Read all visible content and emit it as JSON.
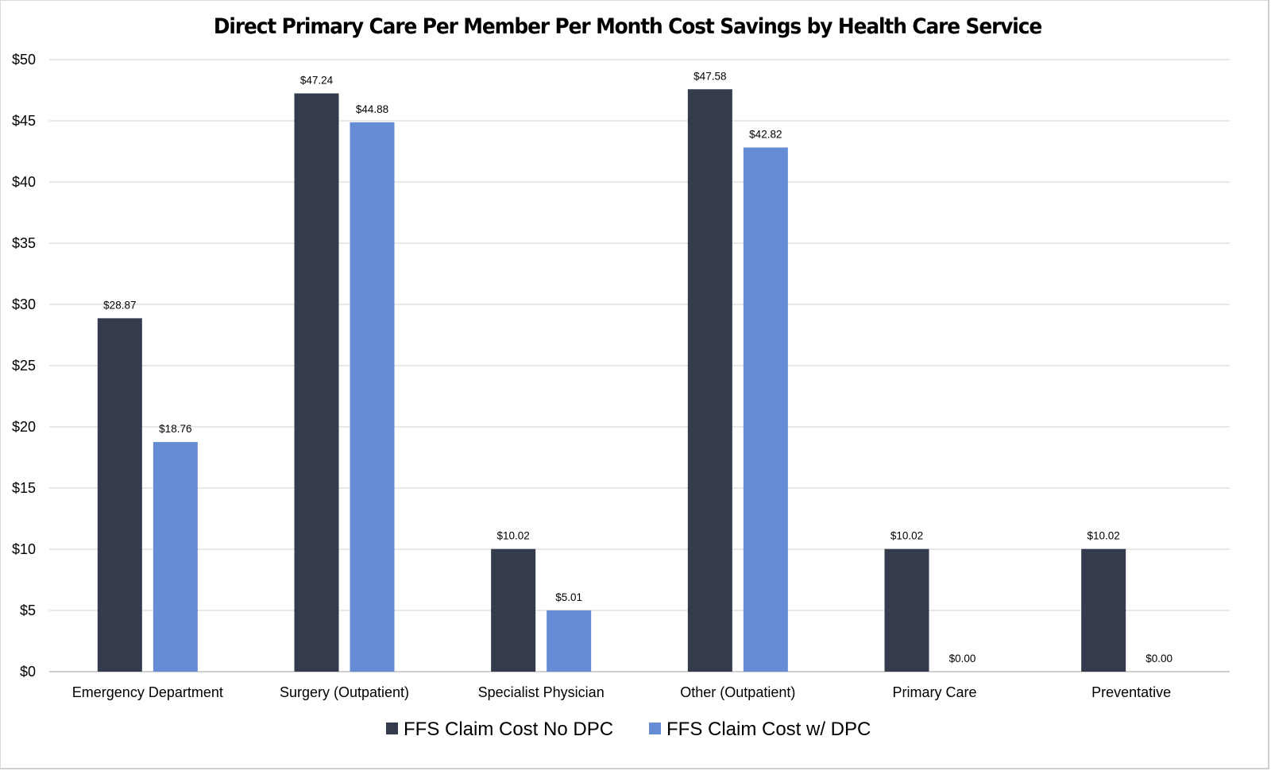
{
  "chart_data": {
    "type": "bar",
    "title": "Direct Primary Care Per Member Per Month Cost Savings by Health Care Service",
    "xlabel": "",
    "ylabel": "",
    "ylim": [
      0,
      50
    ],
    "yticks": [
      0,
      5,
      10,
      15,
      20,
      25,
      30,
      35,
      40,
      45,
      50
    ],
    "ytick_labels": [
      "$0",
      "$5",
      "$10",
      "$15",
      "$20",
      "$25",
      "$30",
      "$35",
      "$40",
      "$45",
      "$50"
    ],
    "grid": true,
    "legend_position": "bottom",
    "categories": [
      "Emergency Department",
      "Surgery (Outpatient)",
      "Specialist Physician",
      "Other (Outpatient)",
      "Primary Care",
      "Preventative"
    ],
    "series": [
      {
        "name": "FFS Claim Cost No DPC",
        "color": "#333b4d",
        "values": [
          28.87,
          47.24,
          10.02,
          47.58,
          10.02,
          10.02
        ],
        "labels": [
          "$28.87",
          "$47.24",
          "$10.02",
          "$47.58",
          "$10.02",
          "$10.02"
        ]
      },
      {
        "name": "FFS Claim Cost w/ DPC",
        "color": "#678cd6",
        "values": [
          18.76,
          44.88,
          5.01,
          42.82,
          0.0,
          0.0
        ],
        "labels": [
          "$18.76",
          "$44.88",
          "$5.01",
          "$42.82",
          "$0.00",
          "$0.00"
        ]
      }
    ]
  }
}
